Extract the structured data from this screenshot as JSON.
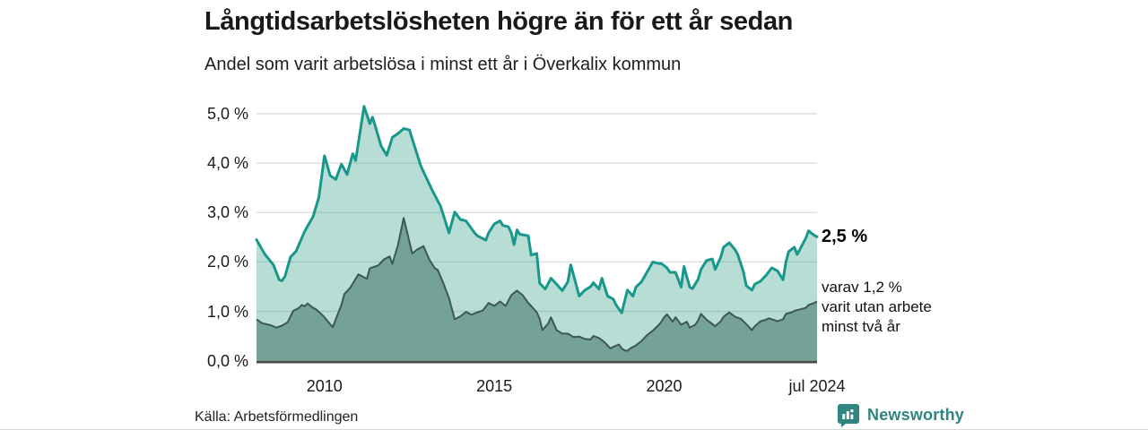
{
  "header": {
    "title": "Långtidsarbetslösheten högre än för ett år sedan",
    "subtitle": "Andel som varit arbetslösa i minst ett år i Överkalix kommun"
  },
  "annotations": {
    "latest_total_label": "2,5 %",
    "note_line1": "varav 1,2 %",
    "note_line2": "varit utan arbete",
    "note_line3": "minst två år"
  },
  "footer": {
    "source": "Källa: Arbetsförmedlingen",
    "brand": "Newsworthy"
  },
  "colors": {
    "line_total": "#18988a",
    "fill_total": "rgba(49,158,135,0.35)",
    "line_two_years": "#3d5751",
    "fill_two_years": "rgba(108,154,143,0.88)",
    "gridline": "#dcdcdc",
    "baseline": "#4a4a4a",
    "brand_teal": "#2f8580"
  },
  "chart_data": {
    "type": "area",
    "title": "Långtidsarbetslösheten högre än för ett år sedan",
    "subtitle": "Andel som varit arbetslösa i minst ett år i Överkalix kommun",
    "x_unit": "month_index_from_2008-01",
    "x_start": "2008-01",
    "x_end": "2024-07",
    "months_total": 198,
    "ylim": [
      0,
      5.2
    ],
    "grid": true,
    "yticks": [
      {
        "value": 0,
        "label": "0,0 %"
      },
      {
        "value": 1,
        "label": "1,0 %"
      },
      {
        "value": 2,
        "label": "2,0 %"
      },
      {
        "value": 3,
        "label": "3,0 %"
      },
      {
        "value": 4,
        "label": "4,0 %"
      },
      {
        "value": 5,
        "label": "5,0 %"
      }
    ],
    "xticks": [
      {
        "label": "2010",
        "month_index": 24
      },
      {
        "label": "2015",
        "month_index": 84
      },
      {
        "label": "2020",
        "month_index": 144
      },
      {
        "label": "jul 2024",
        "month_index": 198
      }
    ],
    "last_values": {
      "total_pct": 2.5,
      "two_years_pct": 1.2
    },
    "series": [
      {
        "name": "Arbetslösa minst ett år",
        "points": [
          [
            0,
            2.45
          ],
          [
            3,
            2.15
          ],
          [
            6,
            1.94
          ],
          [
            8,
            1.64
          ],
          [
            9,
            1.62
          ],
          [
            10,
            1.7
          ],
          [
            12,
            2.1
          ],
          [
            14,
            2.22
          ],
          [
            17,
            2.62
          ],
          [
            20,
            2.92
          ],
          [
            22,
            3.3
          ],
          [
            24,
            4.15
          ],
          [
            26,
            3.75
          ],
          [
            28,
            3.67
          ],
          [
            30,
            3.98
          ],
          [
            32,
            3.77
          ],
          [
            34,
            4.19
          ],
          [
            35,
            4.05
          ],
          [
            38,
            5.15
          ],
          [
            40,
            4.8
          ],
          [
            41,
            4.93
          ],
          [
            43,
            4.55
          ],
          [
            44,
            4.35
          ],
          [
            46,
            4.16
          ],
          [
            48,
            4.52
          ],
          [
            50,
            4.6
          ],
          [
            52,
            4.7
          ],
          [
            54,
            4.67
          ],
          [
            58,
            3.95
          ],
          [
            60,
            3.7
          ],
          [
            62,
            3.46
          ],
          [
            65,
            3.13
          ],
          [
            68,
            2.59
          ],
          [
            70,
            3.01
          ],
          [
            72,
            2.86
          ],
          [
            74,
            2.83
          ],
          [
            77,
            2.59
          ],
          [
            78,
            2.53
          ],
          [
            81,
            2.44
          ],
          [
            82,
            2.59
          ],
          [
            84,
            2.77
          ],
          [
            86,
            2.83
          ],
          [
            87,
            2.74
          ],
          [
            89,
            2.71
          ],
          [
            90,
            2.59
          ],
          [
            91,
            2.35
          ],
          [
            92,
            2.65
          ],
          [
            93,
            2.56
          ],
          [
            96,
            2.53
          ],
          [
            97,
            2.14
          ],
          [
            99,
            2.17
          ],
          [
            100,
            1.57
          ],
          [
            102,
            1.45
          ],
          [
            104,
            1.67
          ],
          [
            106,
            1.55
          ],
          [
            108,
            1.42
          ],
          [
            110,
            1.6
          ],
          [
            111,
            1.94
          ],
          [
            113,
            1.52
          ],
          [
            114,
            1.31
          ],
          [
            116,
            1.43
          ],
          [
            118,
            1.5
          ],
          [
            119,
            1.58
          ],
          [
            121,
            1.45
          ],
          [
            122,
            1.67
          ],
          [
            124,
            1.31
          ],
          [
            126,
            1.25
          ],
          [
            127,
            1.13
          ],
          [
            129,
            0.97
          ],
          [
            131,
            1.43
          ],
          [
            133,
            1.31
          ],
          [
            134,
            1.49
          ],
          [
            136,
            1.6
          ],
          [
            138,
            1.8
          ],
          [
            140,
            2.0
          ],
          [
            142,
            1.97
          ],
          [
            143,
            1.97
          ],
          [
            145,
            1.88
          ],
          [
            146,
            1.79
          ],
          [
            148,
            1.79
          ],
          [
            150,
            1.49
          ],
          [
            151,
            1.91
          ],
          [
            153,
            1.49
          ],
          [
            154,
            1.46
          ],
          [
            156,
            1.65
          ],
          [
            157,
            1.85
          ],
          [
            159,
            2.03
          ],
          [
            161,
            2.06
          ],
          [
            162,
            1.85
          ],
          [
            164,
            2.1
          ],
          [
            165,
            2.3
          ],
          [
            167,
            2.39
          ],
          [
            169,
            2.25
          ],
          [
            170,
            2.15
          ],
          [
            172,
            1.8
          ],
          [
            173,
            1.52
          ],
          [
            175,
            1.43
          ],
          [
            176,
            1.55
          ],
          [
            178,
            1.61
          ],
          [
            180,
            1.73
          ],
          [
            182,
            1.88
          ],
          [
            184,
            1.82
          ],
          [
            186,
            1.64
          ],
          [
            187,
            2.0
          ],
          [
            188,
            2.21
          ],
          [
            190,
            2.3
          ],
          [
            191,
            2.15
          ],
          [
            194,
            2.48
          ],
          [
            195,
            2.63
          ],
          [
            197,
            2.54
          ],
          [
            198,
            2.51
          ]
        ]
      },
      {
        "name": "Varav utan arbete minst två år",
        "points": [
          [
            0,
            0.84
          ],
          [
            2,
            0.76
          ],
          [
            5,
            0.72
          ],
          [
            7,
            0.67
          ],
          [
            9,
            0.71
          ],
          [
            11,
            0.78
          ],
          [
            13,
            1.01
          ],
          [
            15,
            1.07
          ],
          [
            16,
            1.13
          ],
          [
            17,
            1.1
          ],
          [
            18,
            1.16
          ],
          [
            20,
            1.07
          ],
          [
            21,
            1.04
          ],
          [
            23,
            0.94
          ],
          [
            24,
            0.88
          ],
          [
            26,
            0.74
          ],
          [
            27,
            0.68
          ],
          [
            28,
            0.84
          ],
          [
            30,
            1.13
          ],
          [
            31,
            1.35
          ],
          [
            33,
            1.47
          ],
          [
            34,
            1.56
          ],
          [
            36,
            1.75
          ],
          [
            39,
            1.66
          ],
          [
            40,
            1.87
          ],
          [
            43,
            1.93
          ],
          [
            45,
            2.05
          ],
          [
            47,
            2.11
          ],
          [
            48,
            1.96
          ],
          [
            50,
            2.35
          ],
          [
            52,
            2.89
          ],
          [
            54,
            2.41
          ],
          [
            55,
            2.17
          ],
          [
            57,
            2.26
          ],
          [
            59,
            2.32
          ],
          [
            61,
            2.05
          ],
          [
            63,
            1.87
          ],
          [
            64,
            1.84
          ],
          [
            66,
            1.57
          ],
          [
            68,
            1.27
          ],
          [
            70,
            0.84
          ],
          [
            72,
            0.9
          ],
          [
            74,
            0.99
          ],
          [
            76,
            0.93
          ],
          [
            77,
            0.96
          ],
          [
            80,
            1.02
          ],
          [
            82,
            1.17
          ],
          [
            84,
            1.11
          ],
          [
            86,
            1.2
          ],
          [
            88,
            1.11
          ],
          [
            90,
            1.33
          ],
          [
            92,
            1.42
          ],
          [
            94,
            1.33
          ],
          [
            96,
            1.17
          ],
          [
            97,
            1.11
          ],
          [
            99,
            0.98
          ],
          [
            100,
            0.85
          ],
          [
            101,
            0.62
          ],
          [
            103,
            0.75
          ],
          [
            104,
            0.88
          ],
          [
            106,
            0.62
          ],
          [
            108,
            0.55
          ],
          [
            110,
            0.55
          ],
          [
            112,
            0.48
          ],
          [
            114,
            0.49
          ],
          [
            116,
            0.44
          ],
          [
            118,
            0.43
          ],
          [
            119,
            0.5
          ],
          [
            121,
            0.46
          ],
          [
            123,
            0.37
          ],
          [
            125,
            0.25
          ],
          [
            126,
            0.28
          ],
          [
            128,
            0.33
          ],
          [
            129,
            0.25
          ],
          [
            130,
            0.21
          ],
          [
            131,
            0.2
          ],
          [
            132,
            0.25
          ],
          [
            133,
            0.28
          ],
          [
            134,
            0.31
          ],
          [
            136,
            0.4
          ],
          [
            138,
            0.52
          ],
          [
            140,
            0.61
          ],
          [
            142,
            0.72
          ],
          [
            143,
            0.79
          ],
          [
            144,
            0.88
          ],
          [
            145,
            0.94
          ],
          [
            147,
            0.79
          ],
          [
            148,
            0.88
          ],
          [
            150,
            0.73
          ],
          [
            152,
            0.79
          ],
          [
            153,
            0.67
          ],
          [
            155,
            0.73
          ],
          [
            156,
            0.82
          ],
          [
            157,
            0.95
          ],
          [
            159,
            0.83
          ],
          [
            162,
            0.7
          ],
          [
            164,
            0.8
          ],
          [
            165,
            0.89
          ],
          [
            167,
            0.98
          ],
          [
            169,
            0.89
          ],
          [
            171,
            0.85
          ],
          [
            172,
            0.8
          ],
          [
            175,
            0.62
          ],
          [
            176,
            0.7
          ],
          [
            178,
            0.8
          ],
          [
            180,
            0.83
          ],
          [
            181,
            0.86
          ],
          [
            183,
            0.82
          ],
          [
            184,
            0.8
          ],
          [
            186,
            0.84
          ],
          [
            187,
            0.95
          ],
          [
            189,
            0.98
          ],
          [
            190,
            1.01
          ],
          [
            192,
            1.04
          ],
          [
            194,
            1.07
          ],
          [
            195,
            1.13
          ],
          [
            197,
            1.17
          ],
          [
            198,
            1.2
          ]
        ]
      }
    ]
  }
}
